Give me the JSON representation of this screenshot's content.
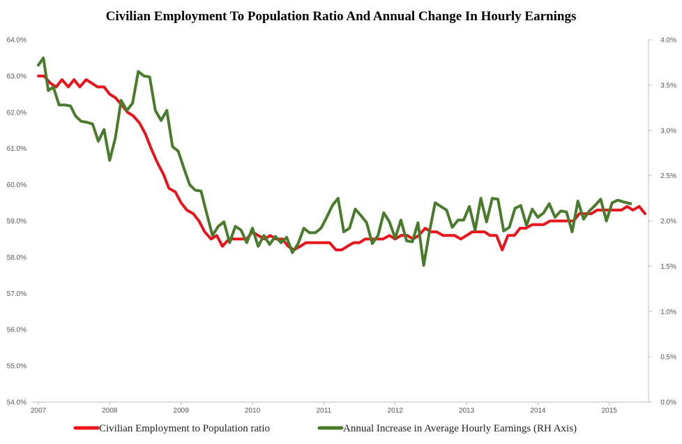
{
  "chart_data": {
    "type": "line",
    "title": "Civilian Employment To Population Ratio And Annual Change In Hourly Earnings",
    "x_range": [
      2007.0,
      2015.55
    ],
    "x_ticks": [
      2007,
      2008,
      2009,
      2010,
      2011,
      2012,
      2013,
      2014,
      2015
    ],
    "x_tick_labels": [
      "2007",
      "2008",
      "2009",
      "2010",
      "2011",
      "2012",
      "2013",
      "2014",
      "2015"
    ],
    "y_left": {
      "min": 54.0,
      "max": 64.0,
      "ticks": [
        54,
        55,
        56,
        57,
        58,
        59,
        60,
        61,
        62,
        63,
        64
      ],
      "tick_labels": [
        "54.0%",
        "55.0%",
        "56.0%",
        "57.0%",
        "58.0%",
        "59.0%",
        "60.0%",
        "61.0%",
        "62.0%",
        "63.0%",
        "64.0%"
      ]
    },
    "y_right": {
      "min": 0.0,
      "max": 4.0,
      "ticks": [
        0,
        0.5,
        1,
        1.5,
        2,
        2.5,
        3,
        3.5,
        4
      ],
      "tick_labels": [
        "0.0%",
        "0.5%",
        "1.0%",
        "1.5%",
        "2.0%",
        "2.5%",
        "3.0%",
        "3.5%",
        "4.0%"
      ]
    },
    "grid": false,
    "legend_position": "bottom",
    "series": [
      {
        "name": "Civilian Employment to Population ratio",
        "axis": "left",
        "color": "#e8141c",
        "points": [
          [
            2007.0,
            63.0
          ],
          [
            2007.08,
            63.0
          ],
          [
            2007.17,
            62.8
          ],
          [
            2007.25,
            62.7
          ],
          [
            2007.33,
            62.9
          ],
          [
            2007.42,
            62.7
          ],
          [
            2007.5,
            62.9
          ],
          [
            2007.58,
            62.7
          ],
          [
            2007.67,
            62.9
          ],
          [
            2007.75,
            62.8
          ],
          [
            2007.83,
            62.7
          ],
          [
            2007.92,
            62.7
          ],
          [
            2008.0,
            62.5
          ],
          [
            2008.08,
            62.4
          ],
          [
            2008.17,
            62.2
          ],
          [
            2008.25,
            62.0
          ],
          [
            2008.33,
            61.9
          ],
          [
            2008.42,
            61.7
          ],
          [
            2008.5,
            61.4
          ],
          [
            2008.58,
            61.0
          ],
          [
            2008.67,
            60.6
          ],
          [
            2008.75,
            60.3
          ],
          [
            2008.83,
            59.9
          ],
          [
            2008.92,
            59.8
          ],
          [
            2009.0,
            59.5
          ],
          [
            2009.08,
            59.3
          ],
          [
            2009.17,
            59.2
          ],
          [
            2009.25,
            59.0
          ],
          [
            2009.33,
            58.7
          ],
          [
            2009.42,
            58.5
          ],
          [
            2009.5,
            58.6
          ],
          [
            2009.58,
            58.3
          ],
          [
            2009.67,
            58.5
          ],
          [
            2009.75,
            58.5
          ],
          [
            2009.83,
            58.5
          ],
          [
            2009.92,
            58.5
          ],
          [
            2010.0,
            58.7
          ],
          [
            2010.08,
            58.6
          ],
          [
            2010.17,
            58.5
          ],
          [
            2010.25,
            58.6
          ],
          [
            2010.33,
            58.5
          ],
          [
            2010.42,
            58.5
          ],
          [
            2010.5,
            58.3
          ],
          [
            2010.58,
            58.2
          ],
          [
            2010.67,
            58.3
          ],
          [
            2010.75,
            58.4
          ],
          [
            2010.83,
            58.4
          ],
          [
            2010.92,
            58.4
          ],
          [
            2011.0,
            58.4
          ],
          [
            2011.08,
            58.4
          ],
          [
            2011.17,
            58.2
          ],
          [
            2011.25,
            58.2
          ],
          [
            2011.33,
            58.3
          ],
          [
            2011.42,
            58.4
          ],
          [
            2011.5,
            58.4
          ],
          [
            2011.58,
            58.5
          ],
          [
            2011.67,
            58.5
          ],
          [
            2011.75,
            58.5
          ],
          [
            2011.83,
            58.5
          ],
          [
            2011.92,
            58.6
          ],
          [
            2012.0,
            58.5
          ],
          [
            2012.08,
            58.6
          ],
          [
            2012.17,
            58.6
          ],
          [
            2012.25,
            58.5
          ],
          [
            2012.33,
            58.6
          ],
          [
            2012.42,
            58.8
          ],
          [
            2012.5,
            58.7
          ],
          [
            2012.58,
            58.7
          ],
          [
            2012.67,
            58.6
          ],
          [
            2012.75,
            58.6
          ],
          [
            2012.83,
            58.6
          ],
          [
            2012.92,
            58.5
          ],
          [
            2013.0,
            58.6
          ],
          [
            2013.08,
            58.7
          ],
          [
            2013.17,
            58.7
          ],
          [
            2013.25,
            58.7
          ],
          [
            2013.33,
            58.6
          ],
          [
            2013.42,
            58.6
          ],
          [
            2013.5,
            58.2
          ],
          [
            2013.58,
            58.6
          ],
          [
            2013.67,
            58.6
          ],
          [
            2013.75,
            58.8
          ],
          [
            2013.83,
            58.8
          ],
          [
            2013.92,
            58.9
          ],
          [
            2014.0,
            58.9
          ],
          [
            2014.08,
            58.9
          ],
          [
            2014.17,
            59.0
          ],
          [
            2014.25,
            59.0
          ],
          [
            2014.33,
            59.0
          ],
          [
            2014.42,
            59.0
          ],
          [
            2014.5,
            59.0
          ],
          [
            2014.58,
            59.2
          ],
          [
            2014.67,
            59.2
          ],
          [
            2014.75,
            59.2
          ],
          [
            2014.83,
            59.3
          ],
          [
            2014.92,
            59.3
          ],
          [
            2015.0,
            59.3
          ],
          [
            2015.08,
            59.3
          ],
          [
            2015.17,
            59.3
          ],
          [
            2015.25,
            59.4
          ],
          [
            2015.33,
            59.3
          ],
          [
            2015.42,
            59.4
          ],
          [
            2015.5,
            59.2
          ]
        ]
      },
      {
        "name": "Annual Increase in Average Hourly Earnings (RH Axis)",
        "axis": "right",
        "color": "#4a7a2c",
        "points": [
          [
            2007.0,
            3.72
          ],
          [
            2007.07,
            3.8
          ],
          [
            2007.14,
            3.44
          ],
          [
            2007.21,
            3.48
          ],
          [
            2007.29,
            3.28
          ],
          [
            2007.37,
            3.28
          ],
          [
            2007.45,
            3.27
          ],
          [
            2007.52,
            3.16
          ],
          [
            2007.6,
            3.1
          ],
          [
            2007.68,
            3.09
          ],
          [
            2007.76,
            3.07
          ],
          [
            2007.84,
            2.88
          ],
          [
            2007.92,
            3.01
          ],
          [
            2008.0,
            2.67
          ],
          [
            2008.08,
            2.92
          ],
          [
            2008.16,
            3.33
          ],
          [
            2008.24,
            3.22
          ],
          [
            2008.32,
            3.3
          ],
          [
            2008.4,
            3.65
          ],
          [
            2008.48,
            3.6
          ],
          [
            2008.56,
            3.59
          ],
          [
            2008.64,
            3.22
          ],
          [
            2008.72,
            3.11
          ],
          [
            2008.8,
            3.22
          ],
          [
            2008.88,
            2.82
          ],
          [
            2008.96,
            2.77
          ],
          [
            2009.04,
            2.58
          ],
          [
            2009.12,
            2.4
          ],
          [
            2009.2,
            2.34
          ],
          [
            2009.28,
            2.33
          ],
          [
            2009.36,
            2.08
          ],
          [
            2009.44,
            1.84
          ],
          [
            2009.52,
            1.94
          ],
          [
            2009.6,
            1.99
          ],
          [
            2009.68,
            1.76
          ],
          [
            2009.76,
            1.94
          ],
          [
            2009.84,
            1.9
          ],
          [
            2009.92,
            1.76
          ],
          [
            2010.0,
            1.92
          ],
          [
            2010.08,
            1.72
          ],
          [
            2010.16,
            1.84
          ],
          [
            2010.24,
            1.74
          ],
          [
            2010.32,
            1.83
          ],
          [
            2010.4,
            1.76
          ],
          [
            2010.48,
            1.82
          ],
          [
            2010.56,
            1.65
          ],
          [
            2010.64,
            1.75
          ],
          [
            2010.72,
            1.92
          ],
          [
            2010.8,
            1.87
          ],
          [
            2010.88,
            1.87
          ],
          [
            2010.96,
            1.92
          ],
          [
            2011.04,
            2.04
          ],
          [
            2011.12,
            2.17
          ],
          [
            2011.2,
            2.25
          ],
          [
            2011.28,
            1.88
          ],
          [
            2011.36,
            1.92
          ],
          [
            2011.44,
            2.13
          ],
          [
            2011.52,
            2.06
          ],
          [
            2011.6,
            1.98
          ],
          [
            2011.68,
            1.75
          ],
          [
            2011.76,
            1.84
          ],
          [
            2011.84,
            2.09
          ],
          [
            2011.92,
            1.99
          ],
          [
            2012.0,
            1.81
          ],
          [
            2012.08,
            2.01
          ],
          [
            2012.16,
            1.78
          ],
          [
            2012.24,
            1.77
          ],
          [
            2012.32,
            1.98
          ],
          [
            2012.4,
            1.51
          ],
          [
            2012.48,
            1.88
          ],
          [
            2012.56,
            2.2
          ],
          [
            2012.64,
            2.16
          ],
          [
            2012.72,
            2.12
          ],
          [
            2012.8,
            1.93
          ],
          [
            2012.88,
            2.01
          ],
          [
            2012.96,
            2.01
          ],
          [
            2013.04,
            2.16
          ],
          [
            2013.12,
            1.9
          ],
          [
            2013.2,
            2.25
          ],
          [
            2013.28,
            1.99
          ],
          [
            2013.36,
            2.25
          ],
          [
            2013.44,
            2.24
          ],
          [
            2013.52,
            1.89
          ],
          [
            2013.6,
            1.93
          ],
          [
            2013.68,
            2.14
          ],
          [
            2013.76,
            2.17
          ],
          [
            2013.84,
            1.95
          ],
          [
            2013.92,
            2.13
          ],
          [
            2014.0,
            2.04
          ],
          [
            2014.08,
            2.09
          ],
          [
            2014.16,
            2.19
          ],
          [
            2014.24,
            2.04
          ],
          [
            2014.32,
            2.11
          ],
          [
            2014.4,
            2.1
          ],
          [
            2014.48,
            1.88
          ],
          [
            2014.56,
            2.22
          ],
          [
            2014.64,
            2.02
          ],
          [
            2014.72,
            2.11
          ],
          [
            2014.8,
            2.17
          ],
          [
            2014.88,
            2.24
          ],
          [
            2014.96,
            2.0
          ],
          [
            2015.04,
            2.2
          ],
          [
            2015.12,
            2.23
          ],
          [
            2015.2,
            2.21
          ],
          [
            2015.3,
            2.19
          ]
        ]
      }
    ]
  }
}
